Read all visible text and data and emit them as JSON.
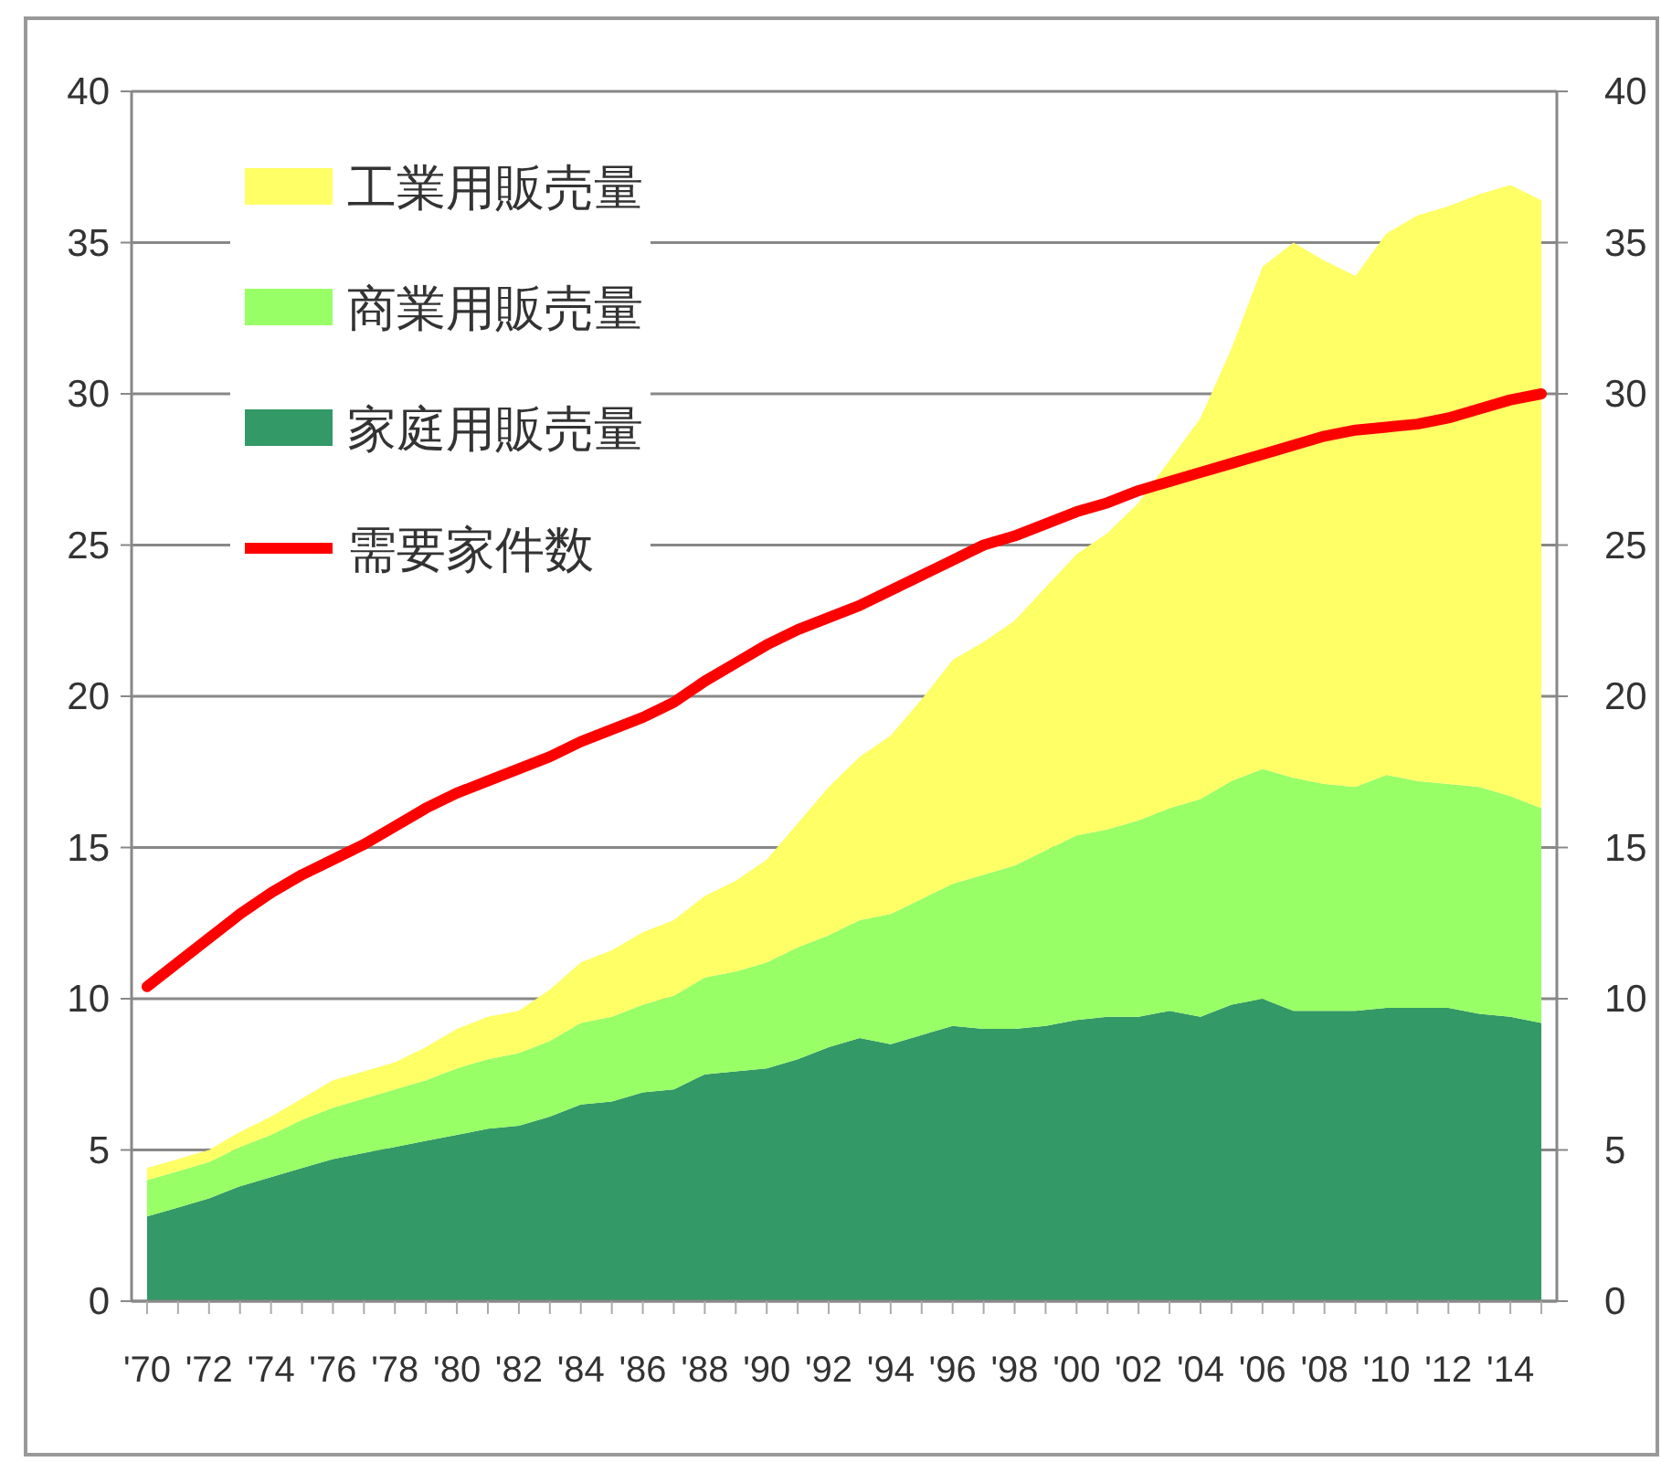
{
  "chart_data": {
    "type": "area",
    "stacked": true,
    "categories": [
      "'70",
      null,
      "'72",
      null,
      "'74",
      null,
      "'76",
      null,
      "'78",
      null,
      "'80",
      null,
      "'82",
      null,
      "'84",
      null,
      "'86",
      null,
      "'88",
      null,
      "'90",
      null,
      "'92",
      null,
      "'94",
      null,
      "'96",
      null,
      "'98",
      null,
      "'00",
      null,
      "'02",
      null,
      "'04",
      null,
      "'06",
      null,
      "'08",
      null,
      "'10",
      null,
      "'12",
      null,
      "'14",
      null
    ],
    "series": [
      {
        "name": "家庭用販売量",
        "color": "#339966",
        "values": [
          2.8,
          3.1,
          3.4,
          3.8,
          4.1,
          4.4,
          4.7,
          4.9,
          5.1,
          5.3,
          5.5,
          5.7,
          5.8,
          6.1,
          6.5,
          6.6,
          6.9,
          7.0,
          7.5,
          7.6,
          7.7,
          8.0,
          8.4,
          8.7,
          8.5,
          8.8,
          9.1,
          9.0,
          9.0,
          9.1,
          9.3,
          9.4,
          9.4,
          9.6,
          9.4,
          9.8,
          10.0,
          9.6,
          9.6,
          9.6,
          9.7,
          9.7,
          9.7,
          9.5,
          9.4,
          9.2
        ]
      },
      {
        "name": "商業用販売量",
        "color": "#99ff66",
        "values": [
          1.2,
          1.2,
          1.2,
          1.3,
          1.4,
          1.6,
          1.7,
          1.8,
          1.9,
          2.0,
          2.2,
          2.3,
          2.4,
          2.5,
          2.7,
          2.8,
          2.9,
          3.1,
          3.2,
          3.3,
          3.5,
          3.7,
          3.7,
          3.9,
          4.3,
          4.5,
          4.7,
          5.1,
          5.4,
          5.8,
          6.1,
          6.2,
          6.5,
          6.7,
          7.2,
          7.4,
          7.6,
          7.7,
          7.5,
          7.4,
          7.7,
          7.5,
          7.4,
          7.5,
          7.3,
          7.1
        ]
      },
      {
        "name": "工業用販売量",
        "color": "#ffff66",
        "values": [
          0.4,
          0.4,
          0.4,
          0.5,
          0.6,
          0.7,
          0.9,
          0.9,
          0.9,
          1.1,
          1.3,
          1.4,
          1.4,
          1.7,
          2.0,
          2.2,
          2.4,
          2.5,
          2.7,
          3.0,
          3.4,
          4.1,
          4.9,
          5.4,
          5.9,
          6.6,
          7.4,
          7.7,
          8.1,
          8.7,
          9.3,
          9.8,
          10.5,
          11.5,
          12.6,
          14.3,
          16.6,
          17.7,
          17.3,
          16.9,
          17.9,
          18.7,
          19.1,
          19.6,
          20.2,
          20.1
        ]
      },
      {
        "name": "需要家件数",
        "type": "line",
        "axis": "y2",
        "color": "#ff0000",
        "values": [
          10.4,
          11.2,
          12.0,
          12.8,
          13.5,
          14.1,
          14.6,
          15.1,
          15.7,
          16.3,
          16.8,
          17.2,
          17.6,
          18.0,
          18.5,
          18.9,
          19.3,
          19.8,
          20.5,
          21.1,
          21.7,
          22.2,
          22.6,
          23.0,
          23.5,
          24.0,
          24.5,
          25.0,
          25.3,
          25.7,
          26.1,
          26.4,
          26.8,
          27.1,
          27.4,
          27.7,
          28.0,
          28.3,
          28.6,
          28.8,
          28.9,
          29.0,
          29.2,
          29.5,
          29.8,
          30.0
        ]
      }
    ],
    "ylim": [
      0,
      40
    ],
    "yticks": [
      0,
      5,
      10,
      15,
      20,
      25,
      30,
      35,
      40
    ],
    "y2lim": [
      0,
      40
    ],
    "y2ticks": [
      0,
      5,
      10,
      15,
      20,
      25,
      30,
      35,
      40
    ],
    "grid": "y",
    "legend": "top left"
  }
}
